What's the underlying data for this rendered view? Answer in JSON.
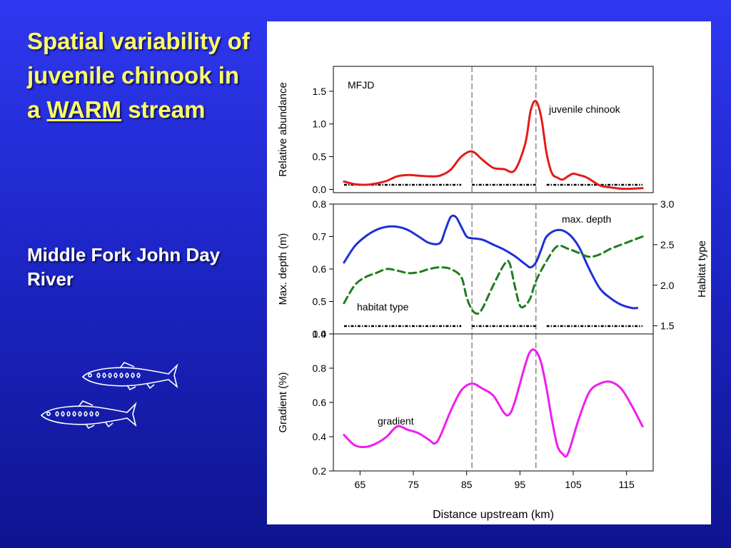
{
  "slide": {
    "title_part1": "Spatial variability of juvenile chinook in a",
    "title_warm": "WARM",
    "title_part2": "stream",
    "subtitle": "Middle Fork John Day River",
    "colors": {
      "title": "#ffff66",
      "subtitle": "#ffffff",
      "background": "#1e26c8",
      "fish_outline": "#ffffff"
    },
    "icons": [
      "fish-icon",
      "fish-icon"
    ]
  },
  "chart_data": [
    {
      "type": "line",
      "title": "",
      "site_label": "MFJD",
      "ylabel": "Relative abundance",
      "ylim": [
        -0.05,
        1.88
      ],
      "yticks": [
        "0.0",
        "0.5",
        "1.0",
        "1.5"
      ],
      "xlim": [
        60,
        120
      ],
      "reference_lines_x": [
        86,
        98
      ],
      "series": [
        {
          "name": "juvenile chinook",
          "color": "#e41a1a",
          "style": "solid",
          "x": [
            62,
            64,
            66,
            68,
            70,
            72,
            74,
            76,
            78,
            80,
            82,
            84,
            86,
            88,
            90,
            92,
            94,
            96,
            97,
            98,
            99,
            100,
            101,
            102,
            103,
            104,
            105,
            106,
            107,
            108,
            110,
            112,
            114,
            116,
            118
          ],
          "y": [
            0.12,
            0.08,
            0.07,
            0.09,
            0.13,
            0.2,
            0.22,
            0.21,
            0.2,
            0.21,
            0.3,
            0.5,
            0.58,
            0.45,
            0.33,
            0.31,
            0.29,
            0.7,
            1.2,
            1.35,
            1.1,
            0.55,
            0.25,
            0.18,
            0.15,
            0.2,
            0.24,
            0.22,
            0.2,
            0.16,
            0.06,
            0.03,
            0.01,
            0.01,
            0.02
          ]
        }
      ],
      "habitat_markers": [
        [
          62,
          84
        ],
        [
          86,
          98
        ],
        [
          100,
          118
        ]
      ]
    },
    {
      "type": "line",
      "title": "",
      "ylabel": "Max. depth (m)",
      "ylim": [
        0.4,
        0.8
      ],
      "yticks": [
        "0.4",
        "0.5",
        "0.6",
        "0.7",
        "0.8"
      ],
      "y2label": "Habitat type",
      "y2lim": [
        1.4,
        3.0
      ],
      "y2ticks": [
        "1.5",
        "2.0",
        "2.5",
        "3.0"
      ],
      "xlim": [
        60,
        120
      ],
      "reference_lines_x": [
        86,
        98
      ],
      "series": [
        {
          "name": "max. depth",
          "color": "#1f2fd8",
          "style": "solid",
          "axis": "left",
          "x": [
            62,
            64,
            66,
            68,
            70,
            72,
            74,
            76,
            78,
            80,
            81,
            82,
            83,
            84,
            85,
            86,
            88,
            90,
            92,
            94,
            96,
            97,
            98,
            99,
            100,
            102,
            104,
            106,
            108,
            110,
            112,
            114,
            116,
            117
          ],
          "y": [
            0.62,
            0.67,
            0.7,
            0.72,
            0.73,
            0.73,
            0.72,
            0.7,
            0.68,
            0.68,
            0.72,
            0.76,
            0.76,
            0.73,
            0.7,
            0.695,
            0.69,
            0.675,
            0.66,
            0.64,
            0.615,
            0.605,
            0.62,
            0.66,
            0.7,
            0.72,
            0.71,
            0.67,
            0.6,
            0.54,
            0.51,
            0.49,
            0.48,
            0.48
          ]
        },
        {
          "name": "habitat type",
          "color": "#1e7d1e",
          "style": "dashed",
          "axis": "right",
          "x": [
            62,
            64,
            66,
            68,
            70,
            72,
            74,
            76,
            78,
            80,
            82,
            84,
            85,
            86,
            87,
            88,
            90,
            92,
            93,
            94,
            95,
            96,
            97,
            98,
            100,
            102,
            104,
            106,
            108,
            110,
            112,
            114,
            116,
            118
          ],
          "y": [
            1.78,
            2.0,
            2.1,
            2.15,
            2.2,
            2.18,
            2.15,
            2.16,
            2.2,
            2.22,
            2.2,
            2.1,
            1.85,
            1.7,
            1.65,
            1.72,
            2.0,
            2.25,
            2.28,
            2.0,
            1.75,
            1.75,
            1.85,
            2.05,
            2.3,
            2.48,
            2.45,
            2.4,
            2.35,
            2.38,
            2.45,
            2.5,
            2.55,
            2.6
          ]
        }
      ],
      "habitat_markers": [
        [
          62,
          84
        ],
        [
          86,
          98
        ],
        [
          100,
          118
        ]
      ]
    },
    {
      "type": "line",
      "title": "",
      "ylabel": "Gradient (%)",
      "ylim": [
        0.2,
        1.0
      ],
      "yticks": [
        "0.2",
        "0.4",
        "0.6",
        "0.8",
        "1.0"
      ],
      "xlabel": "Distance upstream (km)",
      "xlim": [
        60,
        120
      ],
      "xticks": [
        "65",
        "75",
        "85",
        "95",
        "105",
        "115"
      ],
      "reference_lines_x": [
        86,
        98
      ],
      "series": [
        {
          "name": "gradient",
          "color": "#ee1eee",
          "style": "solid",
          "x": [
            62,
            64,
            66,
            68,
            70,
            72,
            74,
            76,
            78,
            79,
            80,
            82,
            84,
            86,
            88,
            90,
            92,
            93,
            94,
            96,
            97,
            98,
            99,
            100,
            101,
            102,
            103,
            104,
            106,
            108,
            110,
            112,
            114,
            116,
            118
          ],
          "y": [
            0.41,
            0.35,
            0.34,
            0.36,
            0.4,
            0.46,
            0.44,
            0.42,
            0.38,
            0.36,
            0.4,
            0.55,
            0.67,
            0.71,
            0.68,
            0.64,
            0.54,
            0.53,
            0.6,
            0.82,
            0.9,
            0.9,
            0.83,
            0.68,
            0.5,
            0.35,
            0.3,
            0.3,
            0.5,
            0.66,
            0.71,
            0.72,
            0.68,
            0.58,
            0.46
          ]
        }
      ]
    }
  ]
}
